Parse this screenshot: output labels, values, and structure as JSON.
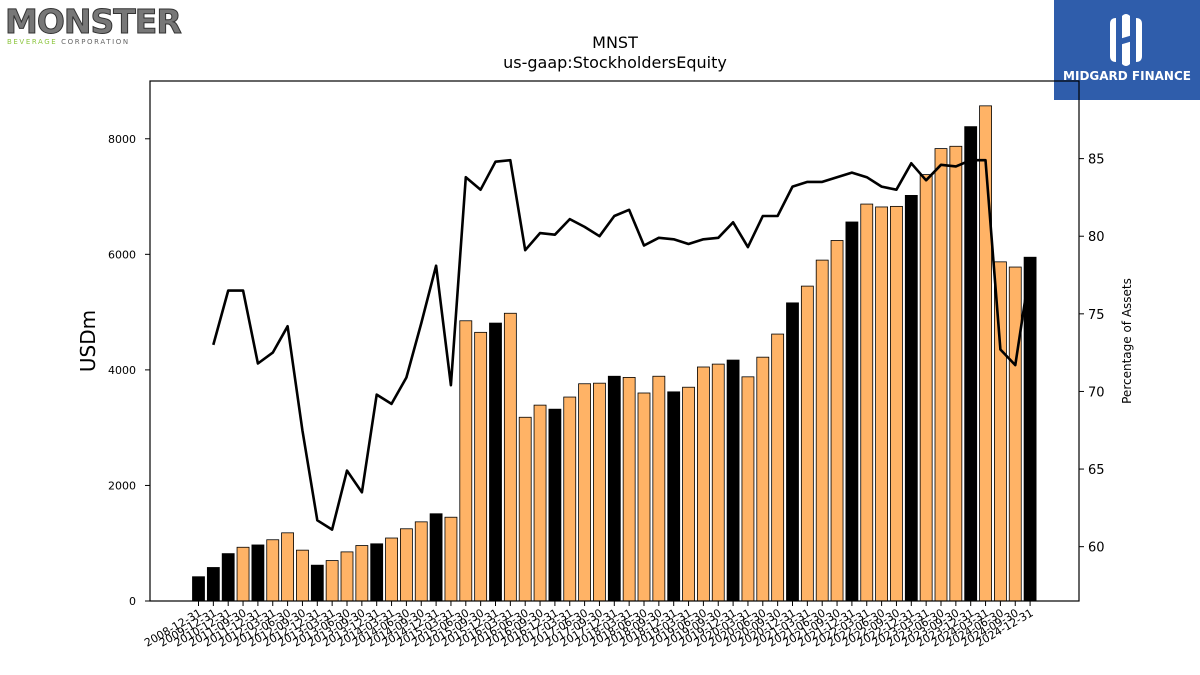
{
  "logos": {
    "company": {
      "word": "MONSTER",
      "tag_left": "BEVERAGE",
      "tag_right": "CORPORATION"
    },
    "publisher": {
      "name": "MIDGARD FINANCE"
    }
  },
  "colors": {
    "bar_annual": "#000000",
    "bar_quarter": "#ffb366",
    "line": "#000000"
  },
  "chart_data": {
    "type": "bar",
    "title": "MNST",
    "subtitle": "us-gaap:StockholdersEquity",
    "ylabel": "USDm",
    "y2label": "Percentage of Assets",
    "ylim": [
      0,
      9000
    ],
    "y2lim": [
      56.5,
      90
    ],
    "yticks": [
      0,
      2000,
      4000,
      6000,
      8000
    ],
    "y2ticks": [
      60,
      65,
      70,
      75,
      80,
      85
    ],
    "categories": [
      "2008-12-31",
      "2009-12-31",
      "2010-12-31",
      "2011-09-30",
      "2011-12-31",
      "2012-03-31",
      "2012-06-30",
      "2012-09-30",
      "2012-12-31",
      "2013-03-31",
      "2013-06-30",
      "2013-09-30",
      "2013-12-31",
      "2014-03-31",
      "2014-06-30",
      "2014-09-30",
      "2014-12-31",
      "2015-03-31",
      "2015-06-30",
      "2015-09-30",
      "2015-12-31",
      "2016-03-31",
      "2016-06-30",
      "2016-09-30",
      "2016-12-31",
      "2017-03-31",
      "2017-06-30",
      "2017-09-30",
      "2017-12-31",
      "2018-03-31",
      "2018-06-30",
      "2018-09-30",
      "2018-12-31",
      "2019-03-31",
      "2019-06-30",
      "2019-09-30",
      "2019-12-31",
      "2020-03-31",
      "2020-06-30",
      "2020-09-30",
      "2020-12-31",
      "2021-03-31",
      "2021-06-30",
      "2021-09-30",
      "2021-12-31",
      "2022-03-31",
      "2022-06-30",
      "2022-09-30",
      "2022-12-31",
      "2023-03-31",
      "2023-06-30",
      "2023-09-30",
      "2023-12-31",
      "2024-03-31",
      "2024-06-30",
      "2024-09-30",
      "2024-12-31"
    ],
    "series": [
      {
        "kind": "bar",
        "values": [
          420,
          580,
          820,
          930,
          970,
          1060,
          1180,
          880,
          620,
          700,
          850,
          960,
          990,
          1090,
          1250,
          1370,
          1510,
          1450,
          4850,
          4650,
          4810,
          4980,
          3180,
          3390,
          3320,
          3530,
          3760,
          3770,
          3890,
          3870,
          3600,
          3890,
          3620,
          3700,
          4050,
          4100,
          4170,
          3880,
          4220,
          4620,
          5160,
          5450,
          5900,
          6240,
          6560,
          6870,
          6820,
          6830,
          7020,
          7380,
          7830,
          7870,
          8210,
          8570,
          5870,
          5780,
          5950
        ],
        "fiscal_year_end": [
          true,
          true,
          true,
          false,
          true,
          false,
          false,
          false,
          true,
          false,
          false,
          false,
          true,
          false,
          false,
          false,
          true,
          false,
          false,
          false,
          true,
          false,
          false,
          false,
          true,
          false,
          false,
          false,
          true,
          false,
          false,
          false,
          true,
          false,
          false,
          false,
          true,
          false,
          false,
          false,
          true,
          false,
          false,
          false,
          true,
          false,
          false,
          false,
          true,
          false,
          false,
          false,
          true,
          false,
          false,
          false,
          true
        ]
      },
      {
        "kind": "line",
        "axis": "right",
        "values": [
          null,
          73.0,
          76.5,
          76.5,
          71.8,
          72.5,
          74.2,
          67.5,
          61.7,
          61.1,
          64.9,
          63.5,
          69.8,
          69.2,
          70.9,
          74.4,
          78.1,
          70.4,
          83.8,
          83.0,
          84.8,
          84.9,
          79.1,
          80.2,
          80.1,
          81.1,
          80.6,
          80.0,
          81.3,
          81.7,
          79.4,
          79.9,
          79.8,
          79.5,
          79.8,
          79.9,
          80.9,
          79.3,
          81.3,
          81.3,
          83.2,
          83.5,
          83.5,
          83.8,
          84.1,
          83.8,
          83.2,
          83.0,
          84.7,
          83.6,
          84.6,
          84.5,
          84.9,
          84.9,
          72.7,
          71.7,
          78.0
        ]
      }
    ],
    "grid": false,
    "legend": "none"
  }
}
